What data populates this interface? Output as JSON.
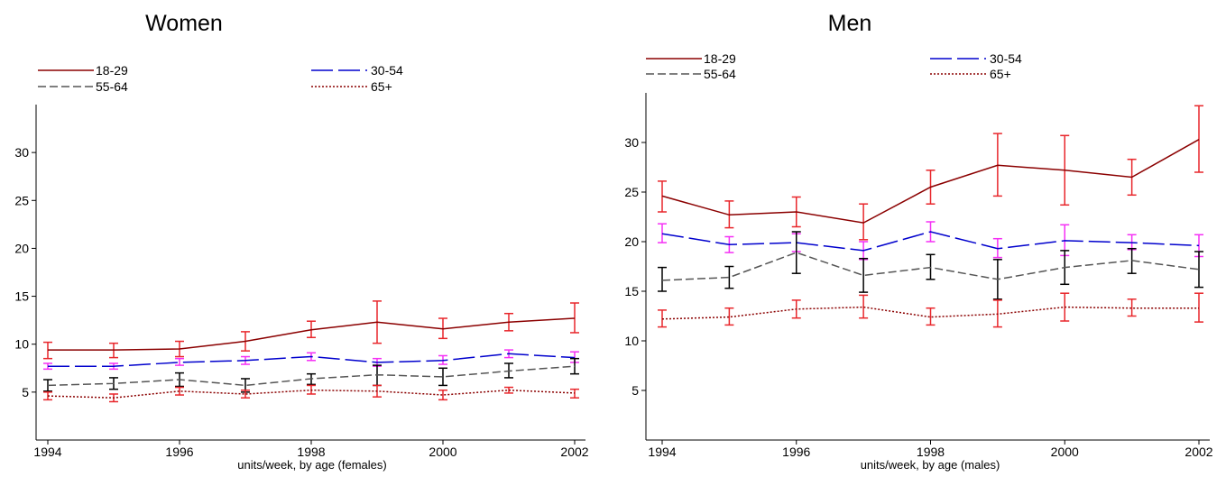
{
  "colors": {
    "18-29": "#8b0000",
    "30-54": "#0000cd",
    "55-64": "#555555",
    "65+": "#8b0000",
    "err_18-29": "#e8262b",
    "err_30-54": "#f52ff5",
    "err_55-64": "#000000",
    "err_65+": "#e8262b"
  },
  "chart_data": [
    {
      "type": "line",
      "title": "Women",
      "xlabel": "units/week, by age (females)",
      "ylabel": "",
      "x": [
        1994,
        1995,
        1996,
        1997,
        1998,
        1999,
        2000,
        2001,
        2002
      ],
      "xticks": [
        1994,
        1996,
        1998,
        2000,
        2002
      ],
      "xtick_labels": [
        "1994",
        "1996",
        "1998",
        "2000",
        "2002"
      ],
      "yticks": [
        5,
        10,
        15,
        20,
        25,
        30
      ],
      "ytick_labels": [
        "5",
        "10",
        "15",
        "20",
        "25",
        "30"
      ],
      "xlim": [
        1994,
        2002
      ],
      "ylim": [
        0,
        35
      ],
      "legend_position": "top",
      "grid": false,
      "series": [
        {
          "name": "18-29",
          "values": [
            9.4,
            9.4,
            9.5,
            10.3,
            11.5,
            12.3,
            11.6,
            12.3,
            12.7
          ],
          "err_low": [
            8.5,
            8.6,
            8.7,
            9.3,
            10.7,
            10.1,
            10.6,
            11.4,
            11.2
          ],
          "err_high": [
            10.2,
            10.1,
            10.3,
            11.3,
            12.4,
            14.5,
            12.7,
            13.2,
            14.3
          ]
        },
        {
          "name": "30-54",
          "values": [
            7.7,
            7.7,
            8.1,
            8.3,
            8.7,
            8.1,
            8.3,
            9.0,
            8.6
          ],
          "err_low": [
            7.4,
            7.4,
            7.8,
            7.9,
            8.3,
            7.7,
            7.9,
            8.6,
            8.1
          ],
          "err_high": [
            8.0,
            8.0,
            8.5,
            8.7,
            9.1,
            8.5,
            8.8,
            9.4,
            9.2
          ]
        },
        {
          "name": "55-64",
          "values": [
            5.7,
            5.9,
            6.3,
            5.7,
            6.4,
            6.8,
            6.6,
            7.2,
            7.7
          ],
          "err_low": [
            5.1,
            5.3,
            5.6,
            5.0,
            5.8,
            5.7,
            5.7,
            6.5,
            6.9
          ],
          "err_high": [
            6.3,
            6.5,
            7.0,
            6.4,
            6.9,
            7.8,
            7.5,
            8.0,
            8.5
          ]
        },
        {
          "name": "65+",
          "values": [
            4.6,
            4.4,
            5.1,
            4.8,
            5.2,
            5.1,
            4.7,
            5.2,
            4.9
          ],
          "err_low": [
            4.2,
            4.0,
            4.7,
            4.4,
            4.8,
            4.5,
            4.2,
            4.9,
            4.4
          ],
          "err_high": [
            5.0,
            4.8,
            5.5,
            5.2,
            5.7,
            5.7,
            5.2,
            5.5,
            5.3
          ]
        }
      ]
    },
    {
      "type": "line",
      "title": "Men",
      "xlabel": "units/week, by age (males)",
      "ylabel": "",
      "x": [
        1994,
        1995,
        1996,
        1997,
        1998,
        1999,
        2000,
        2001,
        2002
      ],
      "xticks": [
        1994,
        1996,
        1998,
        2000,
        2002
      ],
      "xtick_labels": [
        "1994",
        "1996",
        "1998",
        "2000",
        "2002"
      ],
      "yticks": [
        5,
        10,
        15,
        20,
        25,
        30
      ],
      "ytick_labels": [
        "5",
        "10",
        "15",
        "20",
        "25",
        "30"
      ],
      "xlim": [
        1994,
        2002
      ],
      "ylim": [
        0,
        35
      ],
      "legend_position": "top",
      "grid": false,
      "series": [
        {
          "name": "18-29",
          "values": [
            24.6,
            22.7,
            23.0,
            21.9,
            25.5,
            27.7,
            27.2,
            26.5,
            30.3
          ],
          "err_low": [
            23.0,
            21.4,
            21.5,
            20.2,
            23.8,
            24.6,
            23.7,
            24.7,
            27.0
          ],
          "err_high": [
            26.1,
            24.1,
            24.5,
            23.8,
            27.2,
            30.9,
            30.7,
            28.3,
            33.7
          ]
        },
        {
          "name": "30-54",
          "values": [
            20.8,
            19.7,
            19.9,
            19.1,
            21.0,
            19.3,
            20.1,
            19.9,
            19.6
          ],
          "err_low": [
            19.9,
            18.9,
            19.0,
            18.2,
            20.0,
            18.4,
            18.6,
            19.2,
            18.5
          ],
          "err_high": [
            21.8,
            20.5,
            20.8,
            20.0,
            22.0,
            20.3,
            21.7,
            20.7,
            20.7
          ]
        },
        {
          "name": "55-64",
          "values": [
            16.1,
            16.4,
            18.9,
            16.6,
            17.4,
            16.2,
            17.4,
            18.1,
            17.2
          ],
          "err_low": [
            15.0,
            15.3,
            16.8,
            14.9,
            16.2,
            14.2,
            15.7,
            16.8,
            15.4
          ],
          "err_high": [
            17.4,
            17.5,
            21.0,
            18.3,
            18.7,
            18.2,
            19.1,
            19.3,
            19.0
          ]
        },
        {
          "name": "65+",
          "values": [
            12.2,
            12.4,
            13.2,
            13.4,
            12.4,
            12.7,
            13.4,
            13.3,
            13.3
          ],
          "err_low": [
            11.4,
            11.6,
            12.3,
            12.3,
            11.6,
            11.4,
            12.0,
            12.5,
            11.9
          ],
          "err_high": [
            13.1,
            13.3,
            14.1,
            14.6,
            13.3,
            14.1,
            14.8,
            14.2,
            14.8
          ]
        }
      ]
    }
  ]
}
